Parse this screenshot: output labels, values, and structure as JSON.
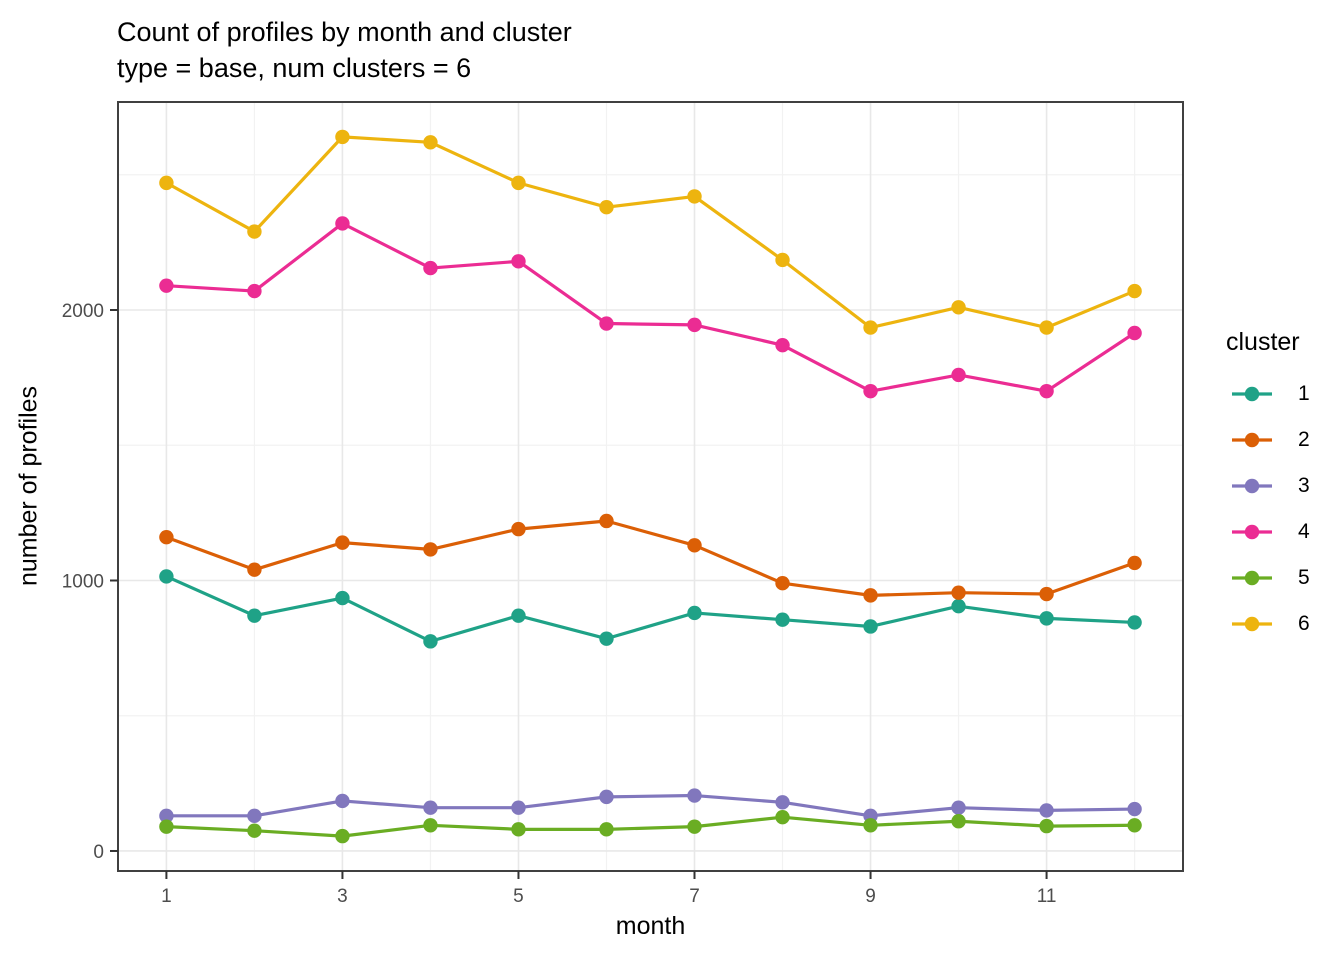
{
  "header": {
    "title": "Count of profiles by month and cluster",
    "subtitle": "type = base, num clusters = 6"
  },
  "chart_data": {
    "type": "line",
    "title": "Count of profiles by month and cluster",
    "subtitle": "type = base, num clusters = 6",
    "xlabel": "month",
    "ylabel": "number of profiles",
    "legend_title": "cluster",
    "legend_position": "right",
    "grid": true,
    "x": [
      1,
      2,
      3,
      4,
      5,
      6,
      7,
      8,
      9,
      10,
      11,
      12
    ],
    "x_ticks": [
      1,
      3,
      5,
      7,
      9,
      11
    ],
    "x_minor_ticks": [
      2,
      4,
      6,
      8,
      10,
      12
    ],
    "y_ticks": [
      0,
      1000,
      2000
    ],
    "y_minor_ticks": [
      500,
      1500,
      2500
    ],
    "xlim": [
      0.45,
      12.55
    ],
    "ylim": [
      -74,
      2769
    ],
    "series": [
      {
        "name": "1",
        "color": "#1FA287",
        "values": [
          1015,
          870,
          935,
          775,
          870,
          785,
          880,
          855,
          830,
          905,
          860,
          845
        ]
      },
      {
        "name": "2",
        "color": "#DB5F06",
        "values": [
          1160,
          1040,
          1140,
          1115,
          1190,
          1220,
          1130,
          990,
          945,
          955,
          950,
          1065
        ]
      },
      {
        "name": "3",
        "color": "#8177BD",
        "values": [
          130,
          130,
          185,
          160,
          160,
          200,
          205,
          180,
          130,
          160,
          150,
          155
        ]
      },
      {
        "name": "4",
        "color": "#EB2C93",
        "values": [
          2090,
          2070,
          2320,
          2155,
          2180,
          1950,
          1945,
          1870,
          1700,
          1760,
          1700,
          1915
        ]
      },
      {
        "name": "5",
        "color": "#6AAD23",
        "values": [
          90,
          75,
          55,
          95,
          80,
          80,
          90,
          125,
          95,
          110,
          92,
          95
        ]
      },
      {
        "name": "6",
        "color": "#EDB40F",
        "values": [
          2470,
          2290,
          2640,
          2620,
          2470,
          2380,
          2420,
          2185,
          1935,
          2010,
          1935,
          2070
        ]
      }
    ],
    "style": {
      "panel_border_color": "#404040",
      "grid_major_color": "#E8E8E8",
      "grid_minor_color": "#F2F2F2",
      "tick_color": "#333333",
      "tick_label_color": "#4D4D4D"
    }
  }
}
